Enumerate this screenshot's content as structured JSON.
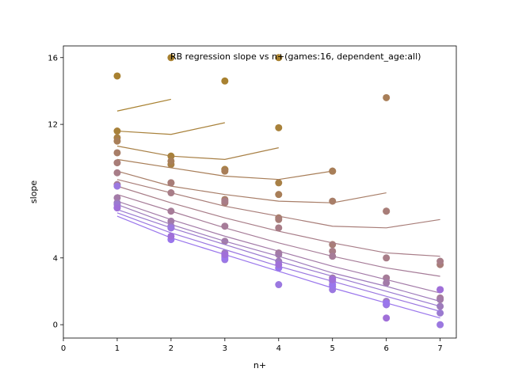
{
  "chart_data": {
    "type": "scatter",
    "title": "RB regression slope vs n+(games:16, dependent_age:all)",
    "xlabel": "n+",
    "ylabel": "slope",
    "xlim": [
      0,
      7.3
    ],
    "ylim": [
      -0.8,
      16.7
    ],
    "xticks": [
      0,
      1,
      2,
      3,
      4,
      5,
      6,
      7
    ],
    "yticks": [
      0,
      4,
      12,
      16
    ],
    "grid": false,
    "series": [
      {
        "color": "#a88130",
        "points": [
          [
            1,
            14.9
          ],
          [
            2,
            16.0
          ],
          [
            3,
            14.6
          ],
          [
            4,
            16.0
          ]
        ],
        "line": [
          [
            1,
            12.8
          ],
          [
            2,
            13.5
          ]
        ]
      },
      {
        "color": "#a8813a",
        "points": [
          [
            1,
            11.6
          ],
          [
            2,
            10.1
          ],
          [
            3,
            9.3
          ],
          [
            4,
            11.8
          ]
        ],
        "line": [
          [
            1,
            11.6
          ],
          [
            2,
            11.4
          ],
          [
            3,
            12.1
          ]
        ]
      },
      {
        "color": "#a88046",
        "points": [
          [
            1,
            11.2
          ],
          [
            2,
            9.6
          ],
          [
            3,
            9.3
          ],
          [
            4,
            8.5
          ],
          [
            5,
            9.2
          ]
        ],
        "line": [
          [
            1,
            10.7
          ],
          [
            2,
            10.1
          ],
          [
            3,
            9.9
          ],
          [
            4,
            10.6
          ]
        ]
      },
      {
        "color": "#a87e58",
        "points": [
          [
            1,
            11.0
          ],
          [
            2,
            9.8
          ],
          [
            3,
            9.2
          ],
          [
            4,
            7.8
          ],
          [
            5,
            9.2
          ],
          [
            6,
            13.6
          ]
        ],
        "line": [
          [
            1,
            9.9
          ],
          [
            2,
            9.4
          ],
          [
            3,
            8.9
          ],
          [
            4,
            8.7
          ],
          [
            5,
            9.2
          ]
        ]
      },
      {
        "color": "#a87e68",
        "points": [
          [
            1,
            10.3
          ],
          [
            2,
            8.5
          ],
          [
            3,
            7.5
          ],
          [
            4,
            6.4
          ],
          [
            5,
            7.4
          ],
          [
            6,
            6.8
          ]
        ],
        "line": [
          [
            1,
            9.2
          ],
          [
            2,
            8.3
          ],
          [
            3,
            7.8
          ],
          [
            4,
            7.4
          ],
          [
            5,
            7.3
          ],
          [
            6,
            7.9
          ]
        ]
      },
      {
        "color": "#a87d78",
        "points": [
          [
            1,
            9.7
          ],
          [
            2,
            8.5
          ],
          [
            3,
            7.3
          ],
          [
            4,
            6.3
          ],
          [
            5,
            4.8
          ],
          [
            6,
            6.8
          ],
          [
            7,
            3.6
          ]
        ],
        "line": [
          [
            1,
            8.7
          ],
          [
            2,
            7.9
          ],
          [
            3,
            7.1
          ],
          [
            4,
            6.5
          ],
          [
            5,
            5.9
          ],
          [
            6,
            5.8
          ],
          [
            7,
            6.3
          ]
        ]
      },
      {
        "color": "#a87d88",
        "points": [
          [
            1,
            9.1
          ],
          [
            2,
            7.9
          ],
          [
            3,
            7.4
          ],
          [
            4,
            5.8
          ],
          [
            5,
            4.4
          ],
          [
            6,
            4.0
          ],
          [
            7,
            3.8
          ]
        ],
        "line": [
          [
            1,
            8.3
          ],
          [
            2,
            7.3
          ],
          [
            3,
            6.4
          ],
          [
            4,
            5.6
          ],
          [
            5,
            4.9
          ],
          [
            6,
            4.3
          ],
          [
            7,
            4.1
          ]
        ]
      },
      {
        "color": "#a67c98",
        "points": [
          [
            1,
            8.4
          ],
          [
            2,
            6.8
          ],
          [
            3,
            5.9
          ],
          [
            4,
            4.3
          ],
          [
            5,
            4.1
          ],
          [
            6,
            2.8
          ],
          [
            7,
            1.6
          ]
        ],
        "line": [
          [
            1,
            7.8
          ],
          [
            2,
            6.8
          ],
          [
            3,
            5.8
          ],
          [
            4,
            4.9
          ],
          [
            5,
            4.1
          ],
          [
            6,
            3.4
          ],
          [
            7,
            2.9
          ]
        ]
      },
      {
        "color": "#a37ba8",
        "points": [
          [
            1,
            7.6
          ],
          [
            2,
            6.2
          ],
          [
            3,
            5.0
          ],
          [
            4,
            4.2
          ],
          [
            5,
            2.8
          ],
          [
            6,
            2.5
          ],
          [
            7,
            1.5
          ]
        ],
        "line": [
          [
            1,
            7.4
          ],
          [
            2,
            6.3
          ],
          [
            3,
            5.3
          ],
          [
            4,
            4.4
          ],
          [
            5,
            3.5
          ],
          [
            6,
            2.7
          ],
          [
            7,
            1.9
          ]
        ]
      },
      {
        "color": "#9e7bbb",
        "points": [
          [
            1,
            7.3
          ],
          [
            2,
            5.9
          ],
          [
            3,
            4.3
          ],
          [
            4,
            3.8
          ],
          [
            5,
            2.6
          ],
          [
            6,
            1.4
          ],
          [
            7,
            1.1
          ]
        ],
        "line": [
          [
            1,
            7.2
          ],
          [
            2,
            6.0
          ],
          [
            3,
            5.0
          ],
          [
            4,
            4.1
          ],
          [
            5,
            3.1
          ],
          [
            6,
            2.3
          ],
          [
            7,
            1.4
          ]
        ]
      },
      {
        "color": "#9a7ad0",
        "points": [
          [
            1,
            7.2
          ],
          [
            2,
            5.8
          ],
          [
            3,
            4.1
          ],
          [
            4,
            3.4
          ],
          [
            5,
            2.3
          ],
          [
            6,
            1.2
          ],
          [
            7,
            0.7
          ]
        ],
        "line": [
          [
            1,
            6.9
          ],
          [
            2,
            5.8
          ],
          [
            3,
            4.8
          ],
          [
            4,
            3.8
          ],
          [
            5,
            2.9
          ],
          [
            6,
            2.0
          ],
          [
            7,
            1.1
          ]
        ]
      },
      {
        "color": "#9b78e0",
        "points": [
          [
            1,
            8.3
          ],
          [
            2,
            5.8
          ],
          [
            3,
            3.9
          ],
          [
            4,
            2.4
          ],
          [
            5,
            2.1
          ],
          [
            6,
            1.2
          ],
          [
            7,
            0.0
          ]
        ],
        "line": [
          [
            1,
            6.7
          ],
          [
            2,
            5.5
          ],
          [
            3,
            4.5
          ],
          [
            4,
            3.5
          ],
          [
            5,
            2.6
          ],
          [
            6,
            1.7
          ],
          [
            7,
            0.8
          ]
        ]
      },
      {
        "color": "#9a76ec",
        "points": [
          [
            1,
            7.0
          ],
          [
            2,
            5.1
          ],
          [
            3,
            4.0
          ],
          [
            4,
            3.4
          ],
          [
            5,
            2.4
          ],
          [
            6,
            1.3
          ],
          [
            7,
            2.1
          ]
        ],
        "line": [
          [
            1,
            6.5
          ],
          [
            2,
            5.2
          ],
          [
            3,
            4.2
          ],
          [
            4,
            3.2
          ],
          [
            5,
            2.2
          ],
          [
            6,
            1.3
          ],
          [
            7,
            0.4
          ]
        ]
      },
      {
        "color": "#a06fd8",
        "points": [
          [
            1,
            7.0
          ],
          [
            2,
            5.3
          ],
          [
            3,
            4.2
          ],
          [
            4,
            3.6
          ],
          [
            5,
            2.7
          ],
          [
            6,
            0.4
          ],
          [
            7,
            2.1
          ]
        ],
        "line": []
      }
    ]
  }
}
